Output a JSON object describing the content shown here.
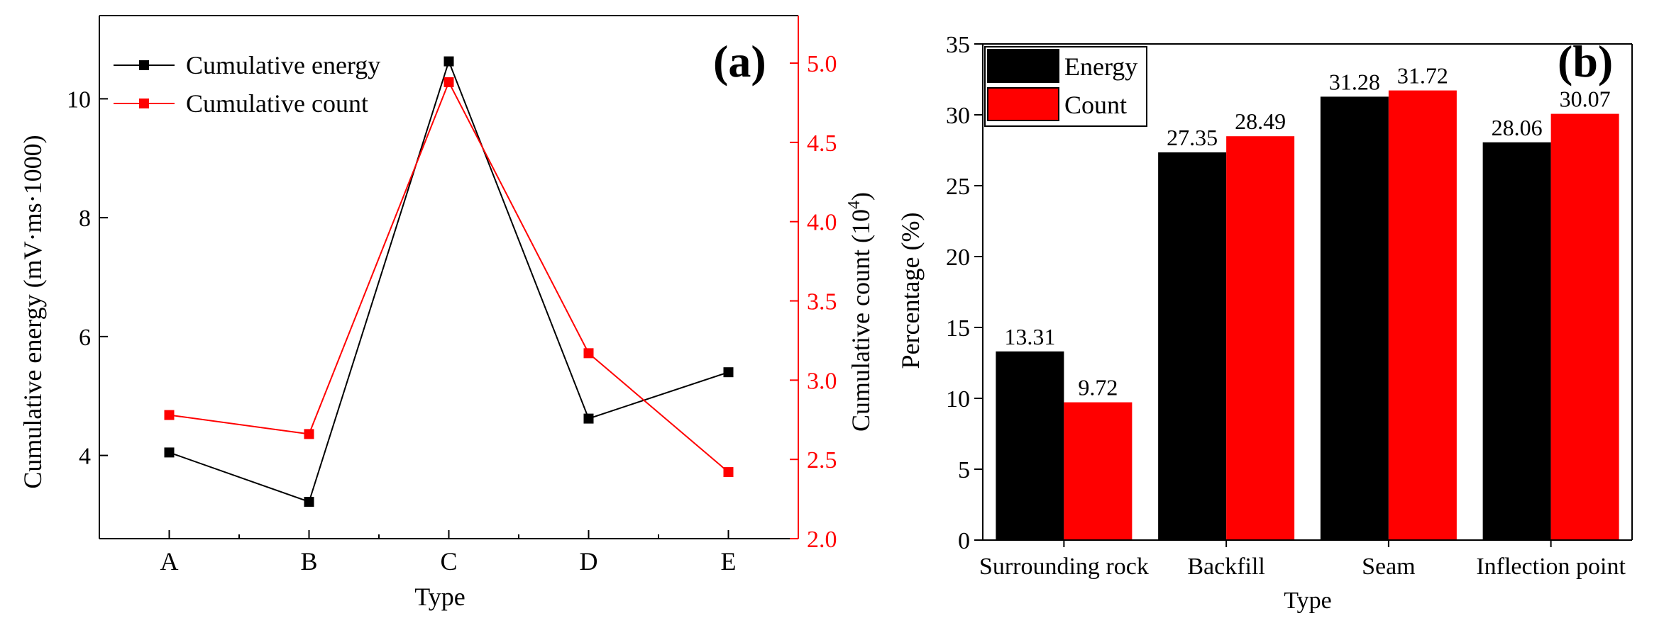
{
  "colors": {
    "axis": "#000000",
    "energy": "#000000",
    "count": "#ff0000",
    "background": "#ffffff"
  },
  "chart_data": [
    {
      "type": "line",
      "panel_label": "(a)",
      "title": "",
      "xlabel": "Type",
      "ylabel_left": "Cumulative energy (mV·ms·1000)",
      "ylabel_right_main": "Cumulative count (10",
      "ylabel_right_sup": "4",
      "ylabel_right_end": ")",
      "categories": [
        "A",
        "B",
        "C",
        "D",
        "E"
      ],
      "y_left_lim": [
        2.6,
        11.4
      ],
      "y_left_ticks": [
        4,
        6,
        8,
        10
      ],
      "y_left_tick_labels": [
        "4",
        "6",
        "8",
        "10"
      ],
      "y_right_lim": [
        2.0,
        5.3
      ],
      "y_right_ticks": [
        2.0,
        2.5,
        3.0,
        3.5,
        4.0,
        4.5,
        5.0
      ],
      "y_right_tick_labels": [
        "2.0",
        "2.5",
        "3.0",
        "3.5",
        "4.0",
        "4.5",
        "5.0"
      ],
      "grid": false,
      "legend_position": "top-left",
      "series": [
        {
          "name": "Cumulative energy",
          "axis": "left",
          "color": "#000000",
          "marker": "square",
          "values": [
            4.05,
            3.22,
            10.63,
            4.62,
            5.4
          ]
        },
        {
          "name": "Cumulative count",
          "axis": "right",
          "color": "#ff0000",
          "marker": "square",
          "values": [
            2.78,
            2.66,
            4.88,
            3.17,
            2.42
          ]
        }
      ]
    },
    {
      "type": "bar",
      "panel_label": "(b)",
      "title": "",
      "xlabel": "Type",
      "ylabel": "Percentage (%)",
      "categories": [
        "Surrounding rock",
        "Backfill",
        "Seam",
        "Inflection point"
      ],
      "ylim": [
        0,
        35
      ],
      "y_ticks": [
        0,
        5,
        10,
        15,
        20,
        25,
        30,
        35
      ],
      "y_tick_labels": [
        "0",
        "5",
        "10",
        "15",
        "20",
        "25",
        "30",
        "35"
      ],
      "grid": false,
      "legend_position": "top-left",
      "series": [
        {
          "name": "Energy",
          "color": "#000000",
          "values": [
            13.31,
            27.35,
            31.28,
            28.06
          ],
          "labels": [
            "13.31",
            "27.35",
            "31.28",
            "28.06"
          ]
        },
        {
          "name": "Count",
          "color": "#ff0000",
          "values": [
            9.72,
            28.49,
            31.72,
            30.07
          ],
          "labels": [
            "9.72",
            "28.49",
            "31.72",
            "30.07"
          ]
        }
      ]
    }
  ]
}
